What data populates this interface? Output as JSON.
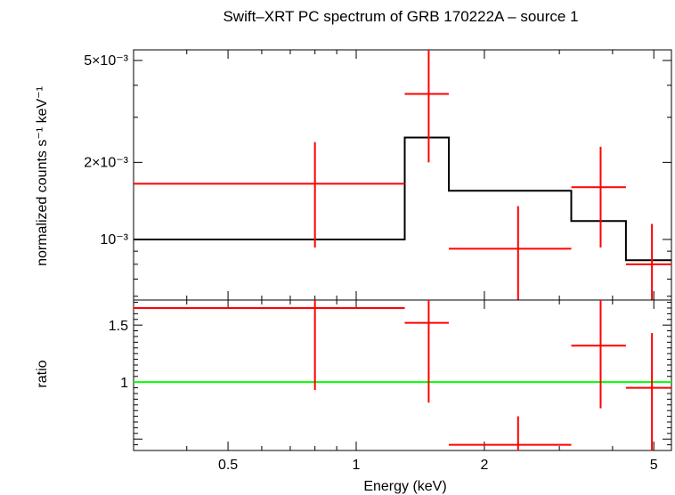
{
  "title": "Swift–XRT PC spectrum of GRB 170222A – source 1",
  "chart_data": [
    {
      "type": "line",
      "panel": "spectrum",
      "ylabel": "normalized counts s⁻¹ keV⁻¹",
      "yscale": "log",
      "xscale": "log",
      "xlim": [
        0.3,
        5.5
      ],
      "ylim": [
        0.00058,
        0.0055
      ],
      "ytick_labels": [
        {
          "value": 0.005,
          "label": "5×10⁻³"
        },
        {
          "value": 0.002,
          "label": "2×10⁻³"
        },
        {
          "value": 0.001,
          "label": "10⁻³"
        }
      ],
      "data_points": {
        "name": "data",
        "color": "#ff0000",
        "points": [
          {
            "x": 0.8,
            "xlo": 0.3,
            "xhi": 1.3,
            "y": 0.00165,
            "ylo": 0.00093,
            "yhi": 0.0024
          },
          {
            "x": 1.48,
            "xlo": 1.3,
            "xhi": 1.65,
            "y": 0.0037,
            "ylo": 0.002,
            "yhi": 0.0055
          },
          {
            "x": 2.4,
            "xlo": 1.65,
            "xhi": 3.2,
            "y": 0.00092,
            "ylo": 0.00058,
            "yhi": 0.00135
          },
          {
            "x": 3.75,
            "xlo": 3.2,
            "xhi": 4.3,
            "y": 0.0016,
            "ylo": 0.00093,
            "yhi": 0.0023
          },
          {
            "x": 4.95,
            "xlo": 4.3,
            "xhi": 5.5,
            "y": 0.0008,
            "ylo": 0.00058,
            "yhi": 0.00115
          }
        ]
      },
      "model": {
        "name": "model",
        "color": "#000000",
        "steps": [
          {
            "xlo": 0.3,
            "xhi": 1.3,
            "y": 0.001
          },
          {
            "xlo": 1.3,
            "xhi": 1.65,
            "y": 0.0025
          },
          {
            "xlo": 1.65,
            "xhi": 3.2,
            "y": 0.00155
          },
          {
            "xlo": 3.2,
            "xhi": 4.3,
            "y": 0.00118
          },
          {
            "xlo": 4.3,
            "xhi": 5.5,
            "y": 0.00083
          }
        ]
      }
    },
    {
      "type": "line",
      "panel": "ratio",
      "ylabel": "ratio",
      "xlabel": "Energy (keV)",
      "xscale": "log",
      "yscale": "linear",
      "xlim": [
        0.3,
        5.5
      ],
      "ylim": [
        0.4,
        1.72
      ],
      "ytick_labels": [
        {
          "value": 1.5,
          "label": "1.5"
        },
        {
          "value": 1,
          "label": "1"
        }
      ],
      "xtick_labels": [
        {
          "value": 0.5,
          "label": "0.5"
        },
        {
          "value": 1,
          "label": "1"
        },
        {
          "value": 2,
          "label": "2"
        },
        {
          "value": 5,
          "label": "5"
        }
      ],
      "reference_line": {
        "y": 1,
        "color": "#00ff00"
      },
      "data_points": {
        "name": "ratio",
        "color": "#ff0000",
        "points": [
          {
            "x": 0.8,
            "xlo": 0.3,
            "xhi": 1.3,
            "y": 1.65,
            "ylo": 0.93,
            "yhi": 1.72
          },
          {
            "x": 1.48,
            "xlo": 1.3,
            "xhi": 1.65,
            "y": 1.52,
            "ylo": 0.82,
            "yhi": 1.72
          },
          {
            "x": 2.4,
            "xlo": 1.65,
            "xhi": 3.2,
            "y": 0.45,
            "ylo": 0.4,
            "yhi": 0.7
          },
          {
            "x": 3.75,
            "xlo": 3.2,
            "xhi": 4.3,
            "y": 1.32,
            "ylo": 0.77,
            "yhi": 1.72
          },
          {
            "x": 4.95,
            "xlo": 4.3,
            "xhi": 5.5,
            "y": 0.95,
            "ylo": 0.4,
            "yhi": 1.43
          }
        ]
      }
    }
  ]
}
